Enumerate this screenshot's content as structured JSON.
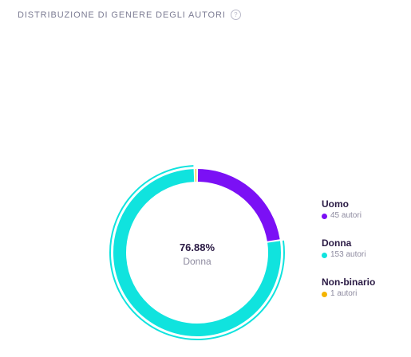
{
  "header": {
    "title": "DISTRIBUZIONE DI GENERE DEGLI AUTORI",
    "help_icon": "question-circle-icon",
    "help_glyph": "?"
  },
  "center": {
    "percent": "76.88%",
    "label": "Donna"
  },
  "chart_data": {
    "type": "pie",
    "variant": "donut",
    "title": "DISTRIBUZIONE DI GENERE DEGLI AUTORI",
    "series": [
      {
        "name": "Uomo",
        "value": 45,
        "count_label": "45 autori",
        "color": "#7b10f5"
      },
      {
        "name": "Donna",
        "value": 153,
        "count_label": "153 autori",
        "color": "#10e3de"
      },
      {
        "name": "Non-binario",
        "value": 1,
        "count_label": "1 autori",
        "color": "#f4b400"
      }
    ],
    "highlighted": "Donna",
    "highlighted_percent": 76.88,
    "legend_position": "right"
  }
}
